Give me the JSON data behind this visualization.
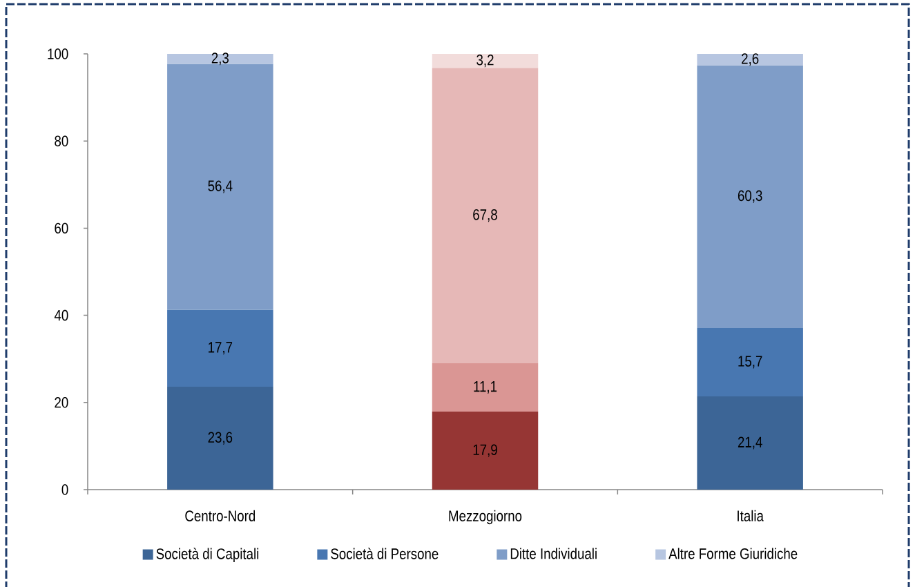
{
  "chart_data": {
    "type": "bar",
    "stacked": true,
    "categories": [
      "Centro-Nord",
      "Mezzogiorno",
      "Italia"
    ],
    "series": [
      {
        "name": "Società di Capitali",
        "color": "#3c6596",
        "colors": [
          "#3c6596",
          "#963634",
          "#3c6596"
        ],
        "values": [
          23.6,
          17.9,
          21.4
        ],
        "value_labels": [
          "23,6",
          "17,9",
          "21,4"
        ]
      },
      {
        "name": "Società di Persone",
        "color": "#4877b1",
        "colors": [
          "#4877b1",
          "#da9694",
          "#4877b1"
        ],
        "values": [
          17.7,
          11.1,
          15.7
        ],
        "value_labels": [
          "17,7",
          "11,1",
          "15,7"
        ]
      },
      {
        "name": "Ditte Individuali",
        "color": "#7f9dc8",
        "colors": [
          "#7f9dc8",
          "#e6b8b7",
          "#7f9dc8"
        ],
        "values": [
          56.4,
          67.8,
          60.3
        ],
        "value_labels": [
          "56,4",
          "67,8",
          "60,3"
        ]
      },
      {
        "name": "Altre Forme Giuridiche",
        "color": "#b7c6e1",
        "colors": [
          "#b7c6e1",
          "#f2dcdb",
          "#b7c6e1"
        ],
        "values": [
          2.3,
          3.2,
          2.6
        ],
        "value_labels": [
          "2,3",
          "3,2",
          "2,6"
        ]
      }
    ],
    "ylim": [
      0,
      100
    ],
    "yticks": [
      0,
      20,
      40,
      60,
      80,
      100
    ],
    "legend": "bottom"
  }
}
